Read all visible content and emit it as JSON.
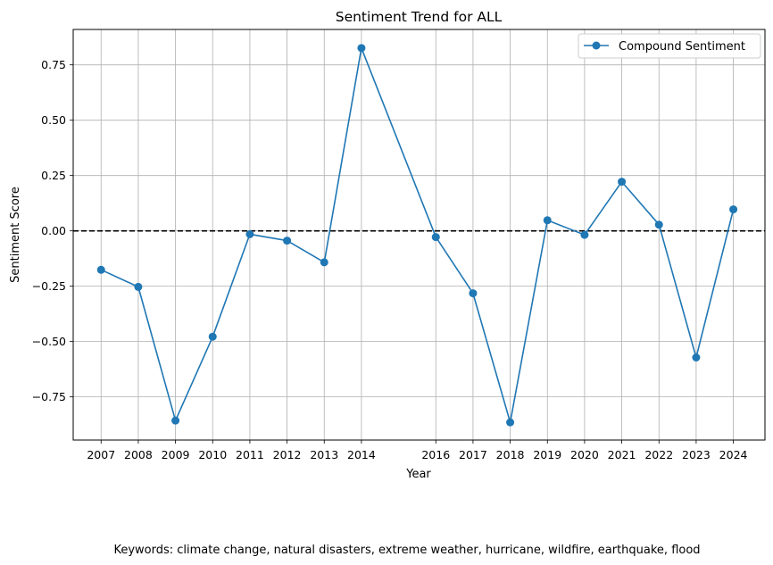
{
  "chart_data": {
    "type": "line",
    "title": "Sentiment Trend for ALL",
    "xlabel": "Year",
    "ylabel": "Sentiment Score",
    "x": [
      2007,
      2008,
      2009,
      2010,
      2011,
      2012,
      2013,
      2014,
      2016,
      2017,
      2018,
      2019,
      2020,
      2021,
      2022,
      2023,
      2024
    ],
    "series": [
      {
        "name": "Compound Sentiment",
        "color": "#1f77b4",
        "marker": "circle",
        "values": [
          -0.176,
          -0.253,
          -0.857,
          -0.478,
          -0.015,
          -0.044,
          -0.142,
          0.826,
          -0.028,
          -0.282,
          -0.865,
          0.048,
          -0.018,
          0.222,
          0.028,
          -0.572,
          0.097
        ]
      }
    ],
    "xlim": [
      2006.25,
      2024.85
    ],
    "ylim": [
      -0.945,
      0.91
    ],
    "yticks": [
      -0.75,
      -0.5,
      -0.25,
      0.0,
      0.25,
      0.5,
      0.75
    ],
    "ytick_labels": [
      "−0.75",
      "−0.50",
      "−0.25",
      "0.00",
      "0.25",
      "0.50",
      "0.75"
    ],
    "reference_line": {
      "y": 0,
      "style": "dashed",
      "color": "#000000"
    },
    "grid": true,
    "legend_position": "upper-right",
    "caption": "Keywords: climate change, natural disasters, extreme weather, hurricane, wildfire, earthquake, flood"
  }
}
